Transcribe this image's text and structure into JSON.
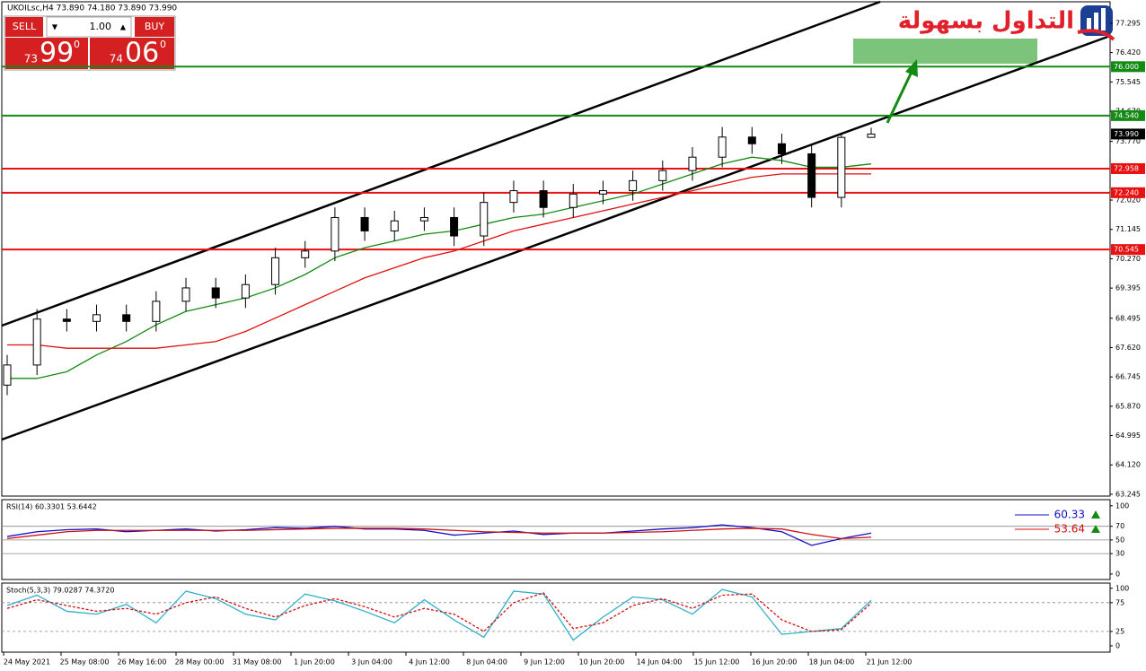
{
  "header": {
    "title": "UKOILsc,H4  73.890 74.180 73.890 73.990"
  },
  "trade_panel": {
    "sell": "SELL",
    "buy": "BUY",
    "lot": "1.00",
    "sell_price": {
      "big": "73",
      "main": "99",
      "sup": "0"
    },
    "buy_price": {
      "big": "74",
      "main": "06",
      "sup": "0"
    }
  },
  "logo": {
    "text": "التداول بسهولة"
  },
  "chart_data": [
    {
      "type": "candlestick",
      "ylim": [
        63.19,
        77.935
      ],
      "yticks": [
        77.295,
        {
          "value": 76.42,
          "label": "76.420"
        },
        75.545,
        {
          "value": 74.67,
          "label": "74.670"
        },
        {
          "value": 73.77,
          "label": "73.770"
        },
        {
          "value": 72.02,
          "label": "72.020"
        },
        71.145,
        {
          "value": 70.27,
          "label": "70.270"
        },
        69.395,
        68.495,
        {
          "value": 67.62,
          "label": "67.620"
        },
        66.745,
        {
          "value": 65.87,
          "label": "65.870"
        },
        64.995,
        {
          "value": 64.12,
          "label": "64.120"
        },
        63.245
      ],
      "x_labels": [
        "24 May 2021",
        "25 May 08:00",
        "26 May 16:00",
        "28 May 00:00",
        "31 May 08:00",
        "1 Jun 20:00",
        "3 Jun 04:00",
        "4 Jun 12:00",
        "8 Jun 04:00",
        "9 Jun 12:00",
        "10 Jun 20:00",
        "14 Jun 04:00",
        "15 Jun 12:00",
        "16 Jun 20:00",
        "18 Jun 04:00",
        "21 Jun 12:00"
      ],
      "open": [
        66.5,
        67.1,
        68.47,
        68.4,
        68.6,
        68.4,
        69.0,
        69.4,
        69.1,
        69.5,
        70.3,
        70.5,
        71.5,
        71.1,
        71.4,
        71.5,
        70.95,
        71.95,
        72.3,
        71.8,
        72.2,
        72.3,
        72.6,
        72.9,
        73.3,
        73.9,
        73.7,
        73.4,
        72.1,
        73.89
      ],
      "high": [
        67.4,
        68.77,
        68.77,
        68.9,
        68.9,
        69.3,
        69.7,
        69.7,
        69.8,
        70.6,
        70.8,
        71.8,
        71.8,
        71.7,
        71.8,
        71.8,
        72.25,
        72.6,
        72.6,
        72.5,
        72.6,
        72.9,
        73.2,
        73.6,
        74.2,
        74.2,
        74.0,
        73.7,
        74.0,
        74.18
      ],
      "low": [
        66.2,
        66.8,
        68.1,
        68.1,
        68.1,
        68.1,
        68.7,
        68.8,
        68.8,
        69.2,
        70.0,
        70.2,
        70.8,
        70.8,
        71.1,
        70.65,
        70.65,
        71.65,
        71.5,
        71.5,
        71.9,
        72.0,
        72.3,
        72.6,
        73.0,
        73.4,
        73.1,
        71.8,
        71.8,
        73.89
      ],
      "close": [
        67.1,
        68.47,
        68.4,
        68.6,
        68.4,
        69.0,
        69.4,
        69.1,
        69.5,
        70.3,
        70.5,
        71.5,
        71.1,
        71.4,
        71.5,
        70.95,
        71.95,
        72.3,
        71.8,
        72.2,
        72.3,
        72.6,
        72.9,
        73.3,
        73.9,
        73.7,
        73.4,
        72.1,
        73.89,
        73.99
      ],
      "series": [
        {
          "color": "#138a13",
          "values": [
            66.7,
            66.7,
            66.9,
            67.4,
            67.8,
            68.3,
            68.7,
            68.9,
            69.1,
            69.4,
            69.8,
            70.3,
            70.6,
            70.8,
            71.0,
            71.1,
            71.3,
            71.5,
            71.6,
            71.8,
            72.0,
            72.2,
            72.5,
            72.8,
            73.1,
            73.3,
            73.2,
            73.0,
            73.0,
            73.1
          ]
        },
        {
          "color": "#e01010",
          "values": [
            67.7,
            67.7,
            67.6,
            67.6,
            67.6,
            67.6,
            67.7,
            67.8,
            68.1,
            68.5,
            68.9,
            69.3,
            69.7,
            70.0,
            70.3,
            70.5,
            70.8,
            71.1,
            71.3,
            71.5,
            71.7,
            71.9,
            72.1,
            72.3,
            72.5,
            72.7,
            72.8,
            72.8,
            72.8,
            72.8
          ]
        }
      ],
      "levels": [
        {
          "value": 76,
          "label": "76.000",
          "color": "#138a13"
        },
        {
          "value": 74.54,
          "label": "74.540",
          "color": "#138a13"
        },
        {
          "value": 72.958,
          "label": "72.958",
          "color": "#e81010"
        },
        {
          "value": 72.24,
          "label": "72.240",
          "color": "#e81010"
        },
        {
          "value": 70.545,
          "label": "70.545",
          "color": "#e81010"
        }
      ],
      "last_price": {
        "value": 73.99,
        "label": "73.990"
      }
    },
    {
      "type": "line",
      "title": "RSI(14) 60.3301 53.6442",
      "ylim": [
        -8,
        109
      ],
      "yticks": [
        0,
        30,
        50,
        70,
        100
      ],
      "levels": [
        30,
        50,
        70
      ],
      "series": [
        {
          "name": "60.33",
          "color": "#1010c8",
          "values": [
            55,
            62,
            65,
            66,
            62,
            64,
            66,
            63,
            65,
            68,
            67,
            70,
            66,
            66,
            64,
            57,
            60,
            63,
            58,
            60,
            60,
            63,
            66,
            68,
            72,
            68,
            62,
            42,
            52,
            60
          ]
        },
        {
          "name": "53.64",
          "color": "#d01010",
          "values": [
            52,
            57,
            62,
            64,
            64,
            64,
            64,
            64,
            64,
            65,
            66,
            67,
            67,
            67,
            66,
            64,
            62,
            61,
            60,
            60,
            60,
            61,
            62,
            64,
            66,
            67,
            66,
            58,
            52,
            54
          ]
        }
      ]
    },
    {
      "type": "line",
      "title": "Stoch(5,3,3) 79.0287 74.3720",
      "ylim": [
        -11,
        109
      ],
      "yticks": [
        0,
        25,
        75,
        100
      ],
      "levels": [
        25,
        75
      ],
      "series": [
        {
          "color": "#30b0c8",
          "values": [
            70,
            88,
            60,
            55,
            72,
            40,
            95,
            82,
            55,
            45,
            90,
            78,
            60,
            40,
            80,
            45,
            15,
            95,
            90,
            10,
            50,
            85,
            80,
            55,
            98,
            85,
            20,
            25,
            30,
            79
          ]
        },
        {
          "color": "#d01010",
          "dashed": true,
          "values": [
            65,
            80,
            70,
            60,
            65,
            55,
            75,
            85,
            65,
            50,
            70,
            82,
            68,
            50,
            65,
            55,
            25,
            75,
            92,
            30,
            40,
            70,
            82,
            65,
            88,
            90,
            45,
            25,
            28,
            74
          ]
        }
      ]
    }
  ]
}
